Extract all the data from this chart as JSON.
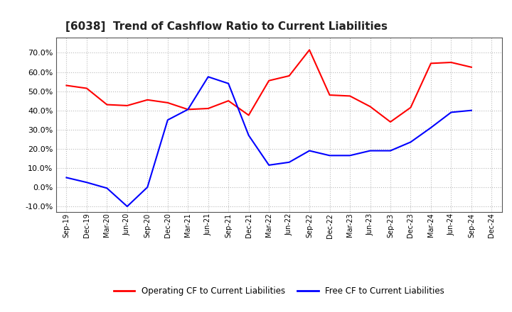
{
  "title": "[6038]  Trend of Cashflow Ratio to Current Liabilities",
  "x_labels": [
    "Sep-19",
    "Dec-19",
    "Mar-20",
    "Jun-20",
    "Sep-20",
    "Dec-20",
    "Mar-21",
    "Jun-21",
    "Sep-21",
    "Dec-21",
    "Mar-22",
    "Jun-22",
    "Sep-22",
    "Dec-22",
    "Mar-23",
    "Jun-23",
    "Sep-23",
    "Dec-23",
    "Mar-24",
    "Jun-24",
    "Sep-24",
    "Dec-24"
  ],
  "operating_cf": [
    0.53,
    0.515,
    0.43,
    0.425,
    0.455,
    0.44,
    0.405,
    0.41,
    0.45,
    0.375,
    0.555,
    0.58,
    0.715,
    0.48,
    0.475,
    0.42,
    0.34,
    0.415,
    0.645,
    0.65,
    0.625,
    null
  ],
  "free_cf": [
    0.05,
    0.025,
    -0.005,
    -0.1,
    0.0,
    0.35,
    0.405,
    0.575,
    0.54,
    0.27,
    0.115,
    0.13,
    0.19,
    0.165,
    0.165,
    0.19,
    0.19,
    0.235,
    0.31,
    0.39,
    0.4,
    null
  ],
  "operating_color": "#ff0000",
  "free_color": "#0000ff",
  "ylim": [
    -0.13,
    0.78
  ],
  "yticks": [
    -0.1,
    0.0,
    0.1,
    0.2,
    0.3,
    0.4,
    0.5,
    0.6,
    0.7
  ],
  "background_color": "#ffffff",
  "grid_color": "#bbbbbb"
}
